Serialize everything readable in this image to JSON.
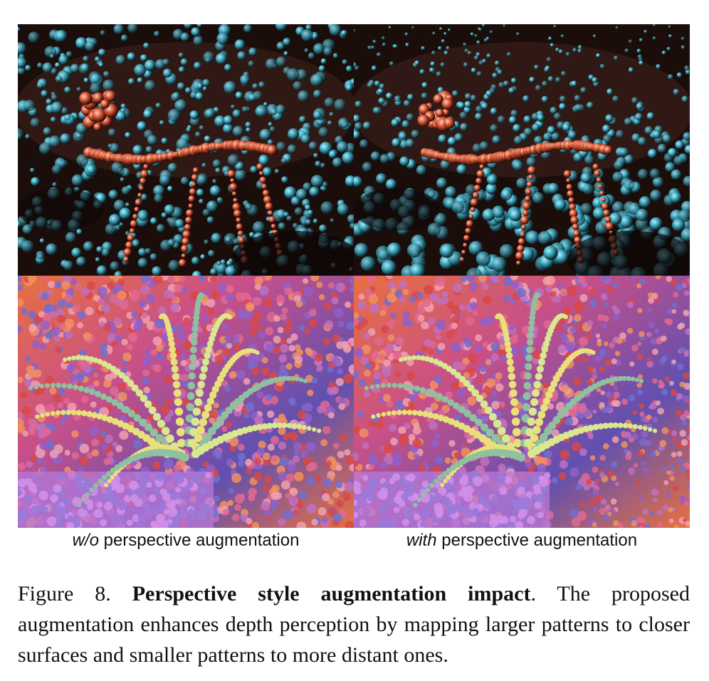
{
  "figure": {
    "panels": [
      {
        "row": "top",
        "column": "w/o",
        "scene": "skeleton-with-bead-style"
      },
      {
        "row": "top",
        "column": "with",
        "scene": "skeleton-with-bead-style"
      },
      {
        "row": "bottom",
        "column": "w/o",
        "scene": "plant-with-bead-style"
      },
      {
        "row": "bottom",
        "column": "with",
        "scene": "plant-with-bead-style"
      }
    ],
    "labels": {
      "left_emphasis": "w/o",
      "left_rest": " perspective augmentation",
      "right_emphasis": "with",
      "right_rest": " perspective augmentation"
    }
  },
  "caption": {
    "prefix": "Figure 8. ",
    "title": "Perspective style augmentation impact",
    "body": ". The proposed augmentation enhances depth perception by mapping larger patterns to closer surfaces and smaller patterns to more distant ones."
  },
  "colors": {
    "dark_bg": "#1a0d0a",
    "bead_cyan": "#3fb0c8",
    "bead_red": "#d05030",
    "plant_yellow": "#e8e07a",
    "plant_green": "#8fc0a0",
    "bg_pink": "#c85088",
    "bg_purple": "#6050b0",
    "bg_orange": "#e87040"
  }
}
